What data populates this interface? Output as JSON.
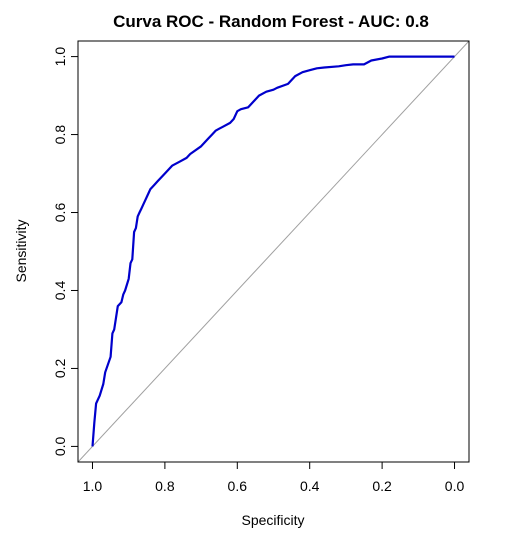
{
  "chart_data": {
    "type": "line",
    "title": "Curva ROC - Random Forest - AUC: 0.8",
    "xlabel": "Specificity",
    "ylabel": "Sensitivity",
    "x_reversed": true,
    "xlim": [
      1.04,
      -0.04
    ],
    "ylim": [
      -0.04,
      1.04
    ],
    "xticks": [
      1.0,
      0.8,
      0.6,
      0.4,
      0.2,
      0.0
    ],
    "xtick_labels": [
      "1.0",
      "0.8",
      "0.6",
      "0.4",
      "0.2",
      "0.0"
    ],
    "yticks": [
      0.0,
      0.2,
      0.4,
      0.6,
      0.8,
      1.0
    ],
    "ytick_labels": [
      "0.0",
      "0.2",
      "0.4",
      "0.6",
      "0.8",
      "1.0"
    ],
    "reference_line": true,
    "grid": false,
    "colors": {
      "roc": "#0000cc",
      "reference": "#a0a0a0",
      "frame": "#000000"
    },
    "series": [
      {
        "x": [
          1.0,
          0.995,
          0.99,
          0.98,
          0.97,
          0.965,
          0.95,
          0.945,
          0.94,
          0.935,
          0.93,
          0.92,
          0.915,
          0.91,
          0.9,
          0.895,
          0.89,
          0.885,
          0.88,
          0.875,
          0.87,
          0.865,
          0.86,
          0.855,
          0.845,
          0.84,
          0.83,
          0.82,
          0.8,
          0.79,
          0.78,
          0.76,
          0.74,
          0.73,
          0.7,
          0.69,
          0.68,
          0.67,
          0.66,
          0.65,
          0.64,
          0.62,
          0.61,
          0.6,
          0.59,
          0.57,
          0.56,
          0.55,
          0.54,
          0.52,
          0.5,
          0.49,
          0.46,
          0.45,
          0.44,
          0.42,
          0.4,
          0.38,
          0.36,
          0.32,
          0.3,
          0.28,
          0.25,
          0.23,
          0.2,
          0.18,
          0.17,
          0.0
        ],
        "y": [
          0.0,
          0.06,
          0.11,
          0.13,
          0.16,
          0.19,
          0.23,
          0.29,
          0.3,
          0.33,
          0.36,
          0.37,
          0.39,
          0.4,
          0.43,
          0.47,
          0.48,
          0.55,
          0.56,
          0.59,
          0.6,
          0.61,
          0.62,
          0.63,
          0.65,
          0.66,
          0.67,
          0.68,
          0.7,
          0.71,
          0.72,
          0.73,
          0.74,
          0.75,
          0.77,
          0.78,
          0.79,
          0.8,
          0.81,
          0.815,
          0.82,
          0.83,
          0.84,
          0.86,
          0.865,
          0.87,
          0.88,
          0.89,
          0.9,
          0.91,
          0.915,
          0.92,
          0.93,
          0.94,
          0.95,
          0.96,
          0.965,
          0.97,
          0.972,
          0.975,
          0.978,
          0.98,
          0.98,
          0.99,
          0.995,
          1.0,
          1.0,
          1.0
        ]
      }
    ]
  }
}
